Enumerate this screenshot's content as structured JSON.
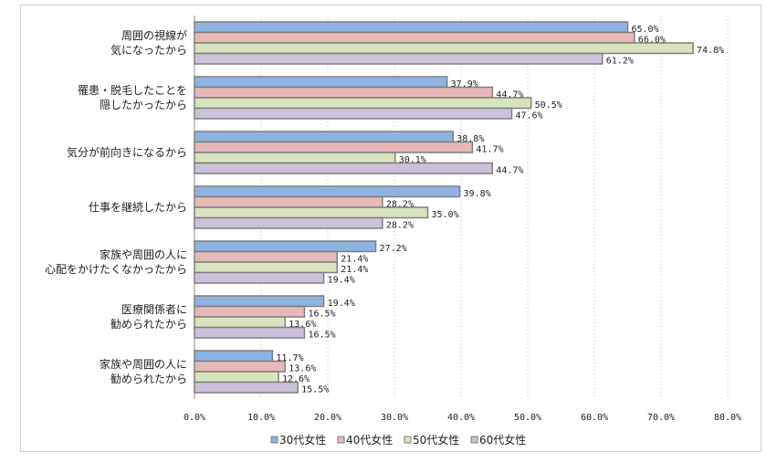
{
  "chart_data": {
    "type": "bar",
    "orientation": "horizontal",
    "categories": [
      [
        "周囲の視線が",
        "気になったから"
      ],
      [
        "罹患・脱毛したことを",
        "隠したかったから"
      ],
      [
        "気分が前向きになるから"
      ],
      [
        "仕事を継続したから"
      ],
      [
        "家族や周囲の人に",
        "心配をかけたくなかったから"
      ],
      [
        "医療関係者に",
        "勧められたから"
      ],
      [
        "家族や周囲の人に",
        "勧められたから"
      ]
    ],
    "series": [
      {
        "name": "30代女性",
        "color": "#8db3e2",
        "values": [
          65.0,
          37.9,
          38.8,
          39.8,
          27.2,
          19.4,
          11.7
        ]
      },
      {
        "name": "40代女性",
        "color": "#e6b9b8",
        "values": [
          66.0,
          44.7,
          41.7,
          28.2,
          21.4,
          16.5,
          13.6
        ]
      },
      {
        "name": "50代女性",
        "color": "#d7e4bd",
        "values": [
          74.8,
          50.5,
          30.1,
          35.0,
          21.4,
          13.6,
          12.6
        ]
      },
      {
        "name": "60代女性",
        "color": "#ccc1da",
        "values": [
          61.2,
          47.6,
          44.7,
          28.2,
          19.4,
          16.5,
          15.5
        ]
      }
    ],
    "xlim": [
      0,
      80
    ],
    "xticks": [
      "0.0%",
      "10.0%",
      "20.0%",
      "30.0%",
      "40.0%",
      "50.0%",
      "60.0%",
      "70.0%",
      "80.0%"
    ],
    "value_suffix": "%",
    "grid": "vertical dotted",
    "legend": "bottom"
  }
}
